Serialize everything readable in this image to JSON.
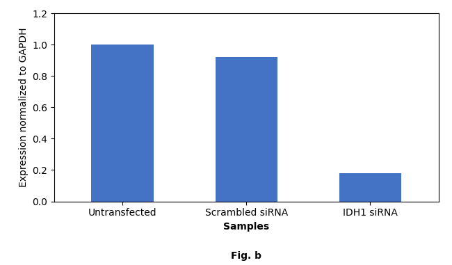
{
  "chart_data": {
    "type": "bar",
    "categories": [
      "Untransfected",
      "Scrambled siRNA",
      "IDH1 siRNA"
    ],
    "values": [
      1.0,
      0.92,
      0.18
    ],
    "color": "#4472C4",
    "x_label": "Samples",
    "y_label": "Expression normalized to GAPDH",
    "ylim": [
      0,
      1.2
    ],
    "yticks": [
      0.0,
      0.2,
      0.4,
      0.6,
      0.8,
      1.0,
      1.2
    ],
    "annotations": [
      "Fig. b"
    ]
  }
}
